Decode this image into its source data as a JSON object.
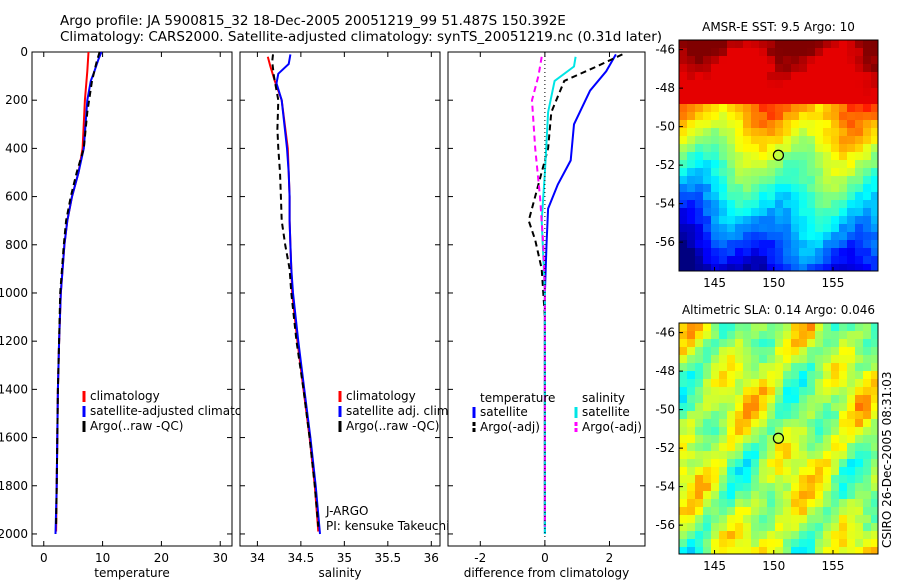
{
  "header": {
    "title_line1": "Argo profile: JA 5900815_32 18-Dec-2005 20051219_99 51.487S 150.392E",
    "title_line2": "Climatology: CARS2000. Satellite-adjusted climatology: synTS_20051219.nc (0.31d later)"
  },
  "footer": {
    "credit": "CSIRO 26-Dec-2005 08:31:03"
  },
  "chart_data": [
    {
      "id": "temperature",
      "type": "line",
      "xlabel": "temperature",
      "xlim": [
        -2,
        32
      ],
      "xticks": [
        0,
        10,
        20,
        30
      ],
      "ylim": [
        0,
        2050
      ],
      "yticks": [
        0,
        200,
        400,
        600,
        800,
        1000,
        1200,
        1400,
        1600,
        1800,
        2000
      ],
      "ylabel": "",
      "colors": {
        "climatology": "#ff0000",
        "satellite": "#0000ff",
        "argo": "#000000"
      },
      "series": [
        {
          "name": "climatology",
          "style": "solid",
          "color": "#ff0000",
          "points": [
            [
              7.6,
              0
            ],
            [
              7.4,
              80
            ],
            [
              7.0,
              200
            ],
            [
              6.6,
              400
            ],
            [
              5.9,
              500
            ],
            [
              4.8,
              600
            ],
            [
              4.0,
              700
            ],
            [
              3.5,
              800
            ],
            [
              3.2,
              900
            ],
            [
              2.9,
              1000
            ],
            [
              2.6,
              1200
            ],
            [
              2.4,
              1400
            ],
            [
              2.3,
              1600
            ],
            [
              2.2,
              1800
            ],
            [
              2.1,
              1990
            ]
          ]
        },
        {
          "name": "satellite-adjusted climatology",
          "style": "solid",
          "color": "#0000ff",
          "points": [
            [
              9.8,
              0
            ],
            [
              9.3,
              30
            ],
            [
              8.6,
              80
            ],
            [
              8.0,
              120
            ],
            [
              7.4,
              200
            ],
            [
              6.8,
              400
            ],
            [
              5.9,
              500
            ],
            [
              4.8,
              600
            ],
            [
              4.0,
              700
            ],
            [
              3.5,
              800
            ],
            [
              3.2,
              900
            ],
            [
              2.9,
              1000
            ],
            [
              2.6,
              1200
            ],
            [
              2.4,
              1400
            ],
            [
              2.3,
              1600
            ],
            [
              2.2,
              1800
            ],
            [
              2.0,
              2000
            ]
          ]
        },
        {
          "name": "Argo(..raw -QC)",
          "style": "dashed",
          "color": "#000000",
          "points": [
            [
              9.5,
              0
            ],
            [
              9.0,
              40
            ],
            [
              8.2,
              120
            ],
            [
              7.4,
              250
            ],
            [
              6.8,
              400
            ],
            [
              5.6,
              500
            ],
            [
              4.6,
              600
            ],
            [
              3.8,
              700
            ],
            [
              3.4,
              800
            ],
            [
              3.1,
              900
            ],
            [
              2.8,
              1000
            ],
            [
              2.6,
              1200
            ],
            [
              2.4,
              1400
            ],
            [
              2.3,
              1600
            ],
            [
              2.2,
              1800
            ],
            [
              2.1,
              1970
            ]
          ]
        }
      ],
      "legend": [
        "climatology",
        "satellite-adjusted climatology",
        "Argo(..raw -QC)"
      ]
    },
    {
      "id": "salinity",
      "type": "line",
      "xlabel": "salinity",
      "xlim": [
        33.8,
        36.1
      ],
      "xticks": [
        34,
        34.5,
        35,
        35.5,
        36
      ],
      "ylim": [
        0,
        2050
      ],
      "colors": {
        "climatology": "#ff0000",
        "satellite": "#0000ff",
        "argo": "#000000"
      },
      "series": [
        {
          "name": "climatology",
          "style": "solid",
          "color": "#ff0000",
          "points": [
            [
              34.12,
              20
            ],
            [
              34.15,
              60
            ],
            [
              34.2,
              120
            ],
            [
              34.28,
              200
            ],
            [
              34.35,
              400
            ],
            [
              34.36,
              500
            ],
            [
              34.37,
              600
            ],
            [
              34.37,
              700
            ],
            [
              34.38,
              800
            ],
            [
              34.39,
              900
            ],
            [
              34.4,
              1000
            ],
            [
              34.46,
              1200
            ],
            [
              34.53,
              1400
            ],
            [
              34.6,
              1600
            ],
            [
              34.66,
              1800
            ],
            [
              34.7,
              1990
            ]
          ]
        },
        {
          "name": "satellite adj. clim.",
          "style": "solid",
          "color": "#0000ff",
          "points": [
            [
              34.38,
              10
            ],
            [
              34.36,
              50
            ],
            [
              34.24,
              90
            ],
            [
              34.22,
              130
            ],
            [
              34.28,
              200
            ],
            [
              34.34,
              400
            ],
            [
              34.36,
              500
            ],
            [
              34.37,
              600
            ],
            [
              34.37,
              700
            ],
            [
              34.38,
              800
            ],
            [
              34.39,
              900
            ],
            [
              34.41,
              1000
            ],
            [
              34.47,
              1200
            ],
            [
              34.54,
              1400
            ],
            [
              34.61,
              1600
            ],
            [
              34.67,
              1800
            ],
            [
              34.72,
              2000
            ]
          ]
        },
        {
          "name": "Argo(..raw -QC)",
          "style": "dashed",
          "color": "#000000",
          "points": [
            [
              34.18,
              10
            ],
            [
              34.17,
              40
            ],
            [
              34.19,
              100
            ],
            [
              34.24,
              200
            ],
            [
              34.23,
              320
            ],
            [
              34.24,
              400
            ],
            [
              34.26,
              500
            ],
            [
              34.27,
              600
            ],
            [
              34.28,
              700
            ],
            [
              34.32,
              800
            ],
            [
              34.37,
              900
            ],
            [
              34.39,
              1000
            ],
            [
              34.45,
              1200
            ],
            [
              34.53,
              1400
            ],
            [
              34.6,
              1600
            ],
            [
              34.66,
              1800
            ],
            [
              34.7,
              1970
            ]
          ]
        }
      ],
      "legend": [
        "climatology",
        "satellite adj. clim.",
        "Argo(..raw -QC)"
      ],
      "annotation": [
        "J-ARGO",
        "PI: kensuke Takeuchi"
      ]
    },
    {
      "id": "difference",
      "type": "line",
      "xlabel": "difference from climatology",
      "xlim": [
        -3,
        3.1
      ],
      "xticks": [
        -2,
        0,
        2
      ],
      "ylim": [
        0,
        2050
      ],
      "colors": {
        "temperature": "#0000ff",
        "salinity": "#00e5e5",
        "argo_adj": "#ff00ff"
      },
      "series": [
        {
          "name": "temperature satellite",
          "style": "solid",
          "color": "#0000ff",
          "points": [
            [
              2.2,
              10
            ],
            [
              1.9,
              80
            ],
            [
              1.4,
              160
            ],
            [
              0.9,
              300
            ],
            [
              0.8,
              450
            ],
            [
              0.4,
              550
            ],
            [
              0.1,
              650
            ],
            [
              0.05,
              800
            ],
            [
              0.0,
              1000
            ],
            [
              0.0,
              2000
            ]
          ]
        },
        {
          "name": "temperature Argo(-adj)",
          "style": "dashed",
          "color": "#000000",
          "points": [
            [
              2.4,
              10
            ],
            [
              1.6,
              60
            ],
            [
              0.6,
              120
            ],
            [
              0.2,
              250
            ],
            [
              0.1,
              400
            ],
            [
              -0.2,
              550
            ],
            [
              -0.5,
              700
            ],
            [
              -0.3,
              780
            ],
            [
              -0.1,
              900
            ],
            [
              0.0,
              1100
            ],
            [
              0.0,
              1970
            ]
          ]
        },
        {
          "name": "salinity satellite",
          "style": "solid",
          "color": "#00e5e5",
          "points": [
            [
              0.95,
              20
            ],
            [
              0.9,
              60
            ],
            [
              0.3,
              120
            ],
            [
              0.1,
              250
            ],
            [
              0.0,
              500
            ],
            [
              -0.1,
              700
            ],
            [
              0.0,
              1000
            ],
            [
              0.0,
              2000
            ]
          ]
        },
        {
          "name": "salinity Argo(-adj)",
          "style": "dashed",
          "color": "#ff00ff",
          "points": [
            [
              -0.1,
              20
            ],
            [
              -0.2,
              100
            ],
            [
              -0.4,
              200
            ],
            [
              -0.3,
              400
            ],
            [
              -0.15,
              600
            ],
            [
              -0.05,
              800
            ],
            [
              0.0,
              1000
            ],
            [
              0.0,
              1970
            ]
          ]
        }
      ],
      "legend_headers": [
        "temperature",
        "salinity"
      ],
      "legend_left": [
        "satellite",
        "Argo(-adj)"
      ],
      "legend_right": [
        "satellite",
        "Argo(-adj)"
      ]
    },
    {
      "id": "sst_map",
      "type": "heatmap",
      "title": "AMSR-E SST: 9.5 Argo: 10",
      "xlim": [
        142,
        158.8
      ],
      "ylim": [
        -57.5,
        -45.5
      ],
      "xticks": [
        145,
        150,
        155
      ],
      "yticks": [
        -46,
        -48,
        -50,
        -52,
        -54,
        -56
      ],
      "marker": {
        "lon": 150.392,
        "lat": -51.487
      }
    },
    {
      "id": "sla_map",
      "type": "heatmap",
      "title": "Altimetric SLA: 0.14 Argo: 0.046",
      "xlim": [
        142,
        158.8
      ],
      "ylim": [
        -57.5,
        -45.5
      ],
      "xticks": [
        145,
        150,
        155
      ],
      "yticks": [
        -46,
        -48,
        -50,
        -52,
        -54,
        -56
      ],
      "marker": {
        "lon": 150.392,
        "lat": -51.487
      }
    }
  ]
}
